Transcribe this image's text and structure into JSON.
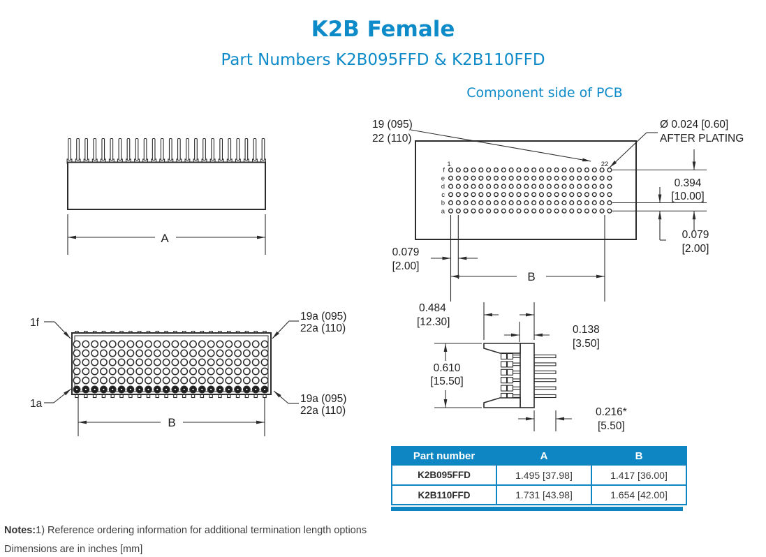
{
  "title": "K2B Female",
  "subtitle": "Part Numbers K2B095FFD & K2B110FFD",
  "colors": {
    "accent": "#0D8BC9",
    "table_header_bg": "#0E86C3",
    "line": "#2B2B2B"
  },
  "front_view": {
    "pin_count": 24,
    "dim_a_label": "A"
  },
  "pcb_view": {
    "caption": "Component side of PCB",
    "count_callout": {
      "line1": "19 (095)",
      "line2": "22 (110)"
    },
    "hole_callout": {
      "line1": "Ø 0.024 [0.60]",
      "line2": "AFTER PLATING"
    },
    "first_col_label": "1",
    "last_col_label": "22",
    "row_labels": [
      "f",
      "e",
      "d",
      "c",
      "b",
      "a"
    ],
    "cols": 22,
    "dim_span": {
      "inch": "0.394",
      "mm": "[10.00]"
    },
    "dim_row_pitch": {
      "inch": "0.079",
      "mm": "[2.00]"
    },
    "dim_col_pitch": {
      "inch": "0.079",
      "mm": "[2.00]"
    },
    "dim_b_label": "B"
  },
  "top_view": {
    "cols": 22,
    "rows": 6,
    "label_first_top": "1f",
    "label_first_bottom": "1a",
    "callout_top": {
      "line1": "19a (095)",
      "line2": "22a (110)"
    },
    "callout_bottom": {
      "line1": "19a (095)",
      "line2": "22a (110)"
    },
    "dim_b_label": "B"
  },
  "side_view": {
    "pin_count": 6,
    "dim_width": {
      "inch": "0.484",
      "mm": "[12.30]"
    },
    "dim_offset": {
      "inch": "0.138",
      "mm": "[3.50]"
    },
    "dim_height": {
      "inch": "0.610",
      "mm": "[15.50]"
    },
    "dim_pin_length": {
      "inch": "0.216*",
      "mm": "[5.50]"
    }
  },
  "table": {
    "headers": [
      "Part number",
      "A",
      "B"
    ],
    "rows": [
      {
        "part": "K2B095FFD",
        "a": "1.495 [37.98]",
        "b": "1.417 [36.00]"
      },
      {
        "part": "K2B110FFD",
        "a": "1.731 [43.98]",
        "b": "1.654 [42.00]"
      }
    ]
  },
  "notes": {
    "label": "Notes:",
    "note1": "1) Reference ordering information for additional termination length options",
    "note2": "Dimensions are in inches [mm]"
  }
}
